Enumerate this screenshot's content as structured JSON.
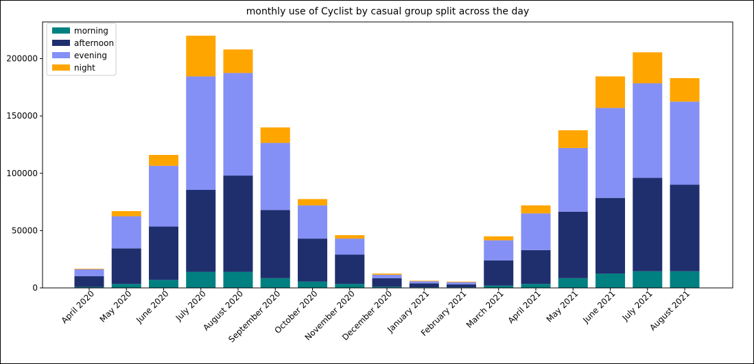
{
  "chart_data": {
    "type": "bar",
    "stacked": true,
    "title": "monthly use of Cyclist by casual group split across the day",
    "xlabel": "",
    "ylabel": "",
    "ylim": [
      0,
      232000
    ],
    "yticks": [
      0,
      50000,
      100000,
      150000,
      200000
    ],
    "ytick_labels": [
      "0",
      "50000",
      "100000",
      "150000",
      "200000"
    ],
    "grid": false,
    "legend_position": "top-left",
    "categories": [
      "April 2020",
      "May 2020",
      "June 2020",
      "July 2020",
      "August 2020",
      "September 2020",
      "October 2020",
      "November 2020",
      "December 2020",
      "January 2021",
      "February 2021",
      "March 2021",
      "April 2021",
      "May 2021",
      "June 2021",
      "July 2021",
      "August 2021"
    ],
    "series": [
      {
        "name": "morning",
        "color": "#008080",
        "values": [
          800,
          3500,
          7000,
          14000,
          14000,
          8500,
          5500,
          3500,
          1000,
          500,
          500,
          2000,
          3500,
          8500,
          12500,
          14500,
          14500
        ]
      },
      {
        "name": "afternoon",
        "color": "#1f2f6e",
        "values": [
          9500,
          31000,
          46500,
          71500,
          84000,
          59500,
          37500,
          25500,
          7500,
          3500,
          2500,
          22000,
          29500,
          58000,
          66000,
          81500,
          75500
        ]
      },
      {
        "name": "evening",
        "color": "#8490f5",
        "values": [
          6000,
          28000,
          53000,
          99000,
          89500,
          58500,
          29000,
          14000,
          3000,
          1800,
          2000,
          17500,
          32000,
          55500,
          78500,
          82500,
          72500
        ]
      },
      {
        "name": "night",
        "color": "#ffa500",
        "values": [
          500,
          4500,
          9500,
          35500,
          20500,
          13500,
          5500,
          3000,
          1000,
          500,
          500,
          3500,
          7000,
          15500,
          27500,
          27000,
          20500
        ]
      }
    ]
  }
}
